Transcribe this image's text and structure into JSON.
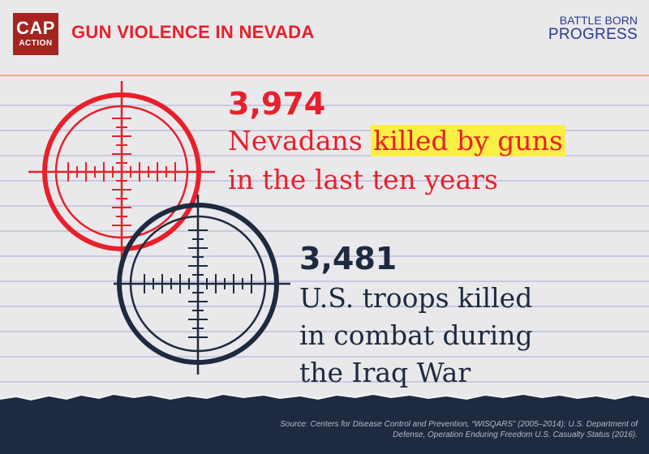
{
  "branding": {
    "cap_line1": "CAP",
    "cap_line2": "ACTION",
    "title": "GUN VIOLENCE IN NEVADA",
    "partner_line1": "BATTLE BORN",
    "partner_line2": "PROGRESS"
  },
  "stat1": {
    "number": "3,974",
    "line1_prefix": "Nevadans ",
    "line1_highlight": "killed by guns",
    "line2": "in the last ten years"
  },
  "stat2": {
    "number": "3,481",
    "line1": "U.S. troops killed",
    "line2": "in combat during",
    "line3": "the Iraq War"
  },
  "source": {
    "text": "Source: Centers for Disease Control and Prevention, “WISQARS” (2005–2014); U.S. Department of Defense, Operation Enduring Freedom U.S. Casualty Status (2016)."
  },
  "colors": {
    "red": "#e8202a",
    "navy": "#1d2a3f",
    "highlight": "#fbee44",
    "cap_brand": "#a5241f",
    "partner_blue": "#2b3a8c"
  },
  "icons": {
    "reticle_red": "crosshair-icon",
    "reticle_navy": "crosshair-icon"
  }
}
